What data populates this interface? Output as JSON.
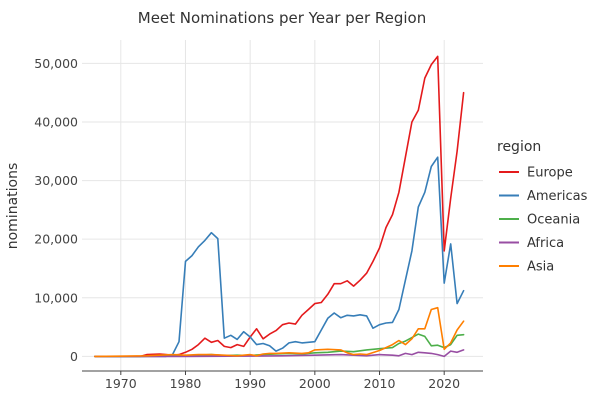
{
  "chart_data": {
    "type": "line",
    "title": "Meet Nominations per Year per Region",
    "xlabel": "",
    "ylabel": "nominations",
    "xlim": [
      1964,
      2026
    ],
    "ylim": [
      -2500,
      54000
    ],
    "x_ticks": [
      1970,
      1980,
      1990,
      2000,
      2010,
      2020
    ],
    "y_ticks": [
      0,
      10000,
      20000,
      30000,
      40000,
      50000
    ],
    "y_tick_labels": [
      "0",
      "10,000",
      "20,000",
      "30,000",
      "40,000",
      "50,000"
    ],
    "grid": true,
    "legend": {
      "title": "region",
      "position": "right"
    },
    "series": [
      {
        "name": "Europe",
        "color": "#e41a1c",
        "points": [
          [
            1966,
            0
          ],
          [
            1970,
            0
          ],
          [
            1973,
            0
          ],
          [
            1974,
            300
          ],
          [
            1976,
            400
          ],
          [
            1977,
            300
          ],
          [
            1978,
            200
          ],
          [
            1979,
            300
          ],
          [
            1980,
            700
          ],
          [
            1981,
            1200
          ],
          [
            1982,
            2000
          ],
          [
            1983,
            3100
          ],
          [
            1984,
            2400
          ],
          [
            1985,
            2700
          ],
          [
            1986,
            1700
          ],
          [
            1987,
            1500
          ],
          [
            1988,
            2000
          ],
          [
            1989,
            1700
          ],
          [
            1990,
            3300
          ],
          [
            1991,
            4700
          ],
          [
            1992,
            3000
          ],
          [
            1993,
            3800
          ],
          [
            1994,
            4400
          ],
          [
            1995,
            5400
          ],
          [
            1996,
            5700
          ],
          [
            1997,
            5500
          ],
          [
            1998,
            7000
          ],
          [
            1999,
            8000
          ],
          [
            2000,
            9000
          ],
          [
            2001,
            9200
          ],
          [
            2002,
            10600
          ],
          [
            2003,
            12400
          ],
          [
            2004,
            12400
          ],
          [
            2005,
            12900
          ],
          [
            2006,
            12000
          ],
          [
            2007,
            13000
          ],
          [
            2008,
            14200
          ],
          [
            2009,
            16200
          ],
          [
            2010,
            18500
          ],
          [
            2011,
            22000
          ],
          [
            2012,
            24200
          ],
          [
            2013,
            28000
          ],
          [
            2014,
            34000
          ],
          [
            2015,
            40000
          ],
          [
            2016,
            42000
          ],
          [
            2017,
            47500
          ],
          [
            2018,
            49800
          ],
          [
            2019,
            51200
          ],
          [
            2020,
            18000
          ],
          [
            2021,
            27000
          ],
          [
            2022,
            35000
          ],
          [
            2023,
            45000
          ]
        ]
      },
      {
        "name": "Americas",
        "color": "#377eb8",
        "points": [
          [
            1966,
            0
          ],
          [
            1970,
            0
          ],
          [
            1973,
            0
          ],
          [
            1975,
            0
          ],
          [
            1977,
            0
          ],
          [
            1978,
            300
          ],
          [
            1979,
            2500
          ],
          [
            1980,
            16200
          ],
          [
            1981,
            17200
          ],
          [
            1982,
            18700
          ],
          [
            1983,
            19800
          ],
          [
            1984,
            21100
          ],
          [
            1985,
            20100
          ],
          [
            1986,
            3100
          ],
          [
            1987,
            3600
          ],
          [
            1988,
            2900
          ],
          [
            1989,
            4200
          ],
          [
            1990,
            3300
          ],
          [
            1991,
            2000
          ],
          [
            1992,
            2200
          ],
          [
            1993,
            1800
          ],
          [
            1994,
            900
          ],
          [
            1995,
            1400
          ],
          [
            1996,
            2300
          ],
          [
            1997,
            2500
          ],
          [
            1998,
            2300
          ],
          [
            1999,
            2400
          ],
          [
            2000,
            2500
          ],
          [
            2001,
            4500
          ],
          [
            2002,
            6500
          ],
          [
            2003,
            7400
          ],
          [
            2004,
            6600
          ],
          [
            2005,
            7000
          ],
          [
            2006,
            6900
          ],
          [
            2007,
            7100
          ],
          [
            2008,
            6900
          ],
          [
            2009,
            4800
          ],
          [
            2010,
            5400
          ],
          [
            2011,
            5700
          ],
          [
            2012,
            5800
          ],
          [
            2013,
            8000
          ],
          [
            2014,
            13000
          ],
          [
            2015,
            18000
          ],
          [
            2016,
            25500
          ],
          [
            2017,
            28000
          ],
          [
            2018,
            32400
          ],
          [
            2019,
            34000
          ],
          [
            2020,
            12500
          ],
          [
            2021,
            19200
          ],
          [
            2022,
            9000
          ],
          [
            2023,
            11200
          ]
        ]
      },
      {
        "name": "Oceania",
        "color": "#4daf4a",
        "points": [
          [
            1966,
            0
          ],
          [
            1970,
            0
          ],
          [
            1973,
            0
          ],
          [
            1976,
            100
          ],
          [
            1978,
            200
          ],
          [
            1980,
            150
          ],
          [
            1982,
            200
          ],
          [
            1984,
            300
          ],
          [
            1986,
            150
          ],
          [
            1988,
            200
          ],
          [
            1990,
            150
          ],
          [
            1992,
            300
          ],
          [
            1994,
            400
          ],
          [
            1996,
            500
          ],
          [
            1998,
            400
          ],
          [
            2000,
            600
          ],
          [
            2002,
            700
          ],
          [
            2004,
            900
          ],
          [
            2006,
            800
          ],
          [
            2008,
            1100
          ],
          [
            2010,
            1300
          ],
          [
            2012,
            1500
          ],
          [
            2013,
            2200
          ],
          [
            2014,
            2600
          ],
          [
            2015,
            3200
          ],
          [
            2016,
            3800
          ],
          [
            2017,
            3400
          ],
          [
            2018,
            1800
          ],
          [
            2019,
            1900
          ],
          [
            2020,
            1500
          ],
          [
            2021,
            2000
          ],
          [
            2022,
            3600
          ],
          [
            2023,
            3700
          ]
        ]
      },
      {
        "name": "Africa",
        "color": "#984ea3",
        "points": [
          [
            1966,
            0
          ],
          [
            1980,
            0
          ],
          [
            1990,
            50
          ],
          [
            1995,
            100
          ],
          [
            2000,
            200
          ],
          [
            2004,
            300
          ],
          [
            2006,
            200
          ],
          [
            2008,
            100
          ],
          [
            2010,
            300
          ],
          [
            2012,
            200
          ],
          [
            2013,
            100
          ],
          [
            2014,
            500
          ],
          [
            2015,
            300
          ],
          [
            2016,
            700
          ],
          [
            2017,
            600
          ],
          [
            2018,
            500
          ],
          [
            2019,
            300
          ],
          [
            2020,
            0
          ],
          [
            2021,
            900
          ],
          [
            2022,
            700
          ],
          [
            2023,
            1100
          ]
        ]
      },
      {
        "name": "Asia",
        "color": "#ff7f00",
        "points": [
          [
            1966,
            0
          ],
          [
            1974,
            100
          ],
          [
            1976,
            200
          ],
          [
            1978,
            300
          ],
          [
            1980,
            200
          ],
          [
            1982,
            300
          ],
          [
            1984,
            300
          ],
          [
            1986,
            200
          ],
          [
            1988,
            100
          ],
          [
            1990,
            300
          ],
          [
            1991,
            100
          ],
          [
            1992,
            400
          ],
          [
            1993,
            500
          ],
          [
            1994,
            500
          ],
          [
            1996,
            600
          ],
          [
            1998,
            500
          ],
          [
            1999,
            600
          ],
          [
            2000,
            1100
          ],
          [
            2002,
            1200
          ],
          [
            2004,
            1100
          ],
          [
            2005,
            600
          ],
          [
            2006,
            300
          ],
          [
            2007,
            400
          ],
          [
            2008,
            300
          ],
          [
            2010,
            1000
          ],
          [
            2012,
            2000
          ],
          [
            2013,
            2700
          ],
          [
            2014,
            2000
          ],
          [
            2015,
            3000
          ],
          [
            2016,
            4700
          ],
          [
            2017,
            4700
          ],
          [
            2018,
            8000
          ],
          [
            2019,
            8300
          ],
          [
            2020,
            1200
          ],
          [
            2021,
            2300
          ],
          [
            2022,
            4500
          ],
          [
            2023,
            6000
          ]
        ]
      }
    ]
  }
}
